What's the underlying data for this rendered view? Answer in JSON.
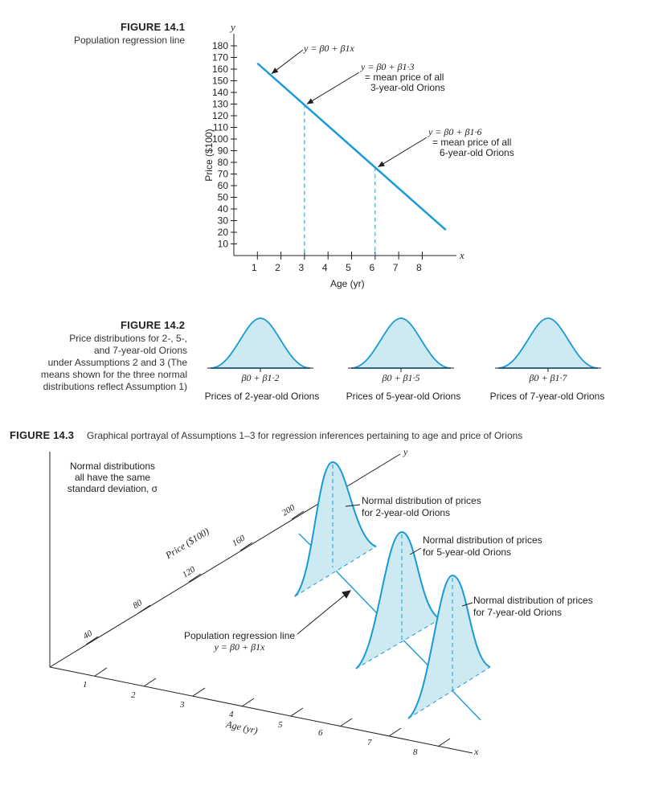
{
  "fig1": {
    "label": "FIGURE 14.1",
    "caption": "Population regression line",
    "y_axis_var": "y",
    "x_axis_var": "x",
    "y_axis_label": "Price ($100)",
    "x_axis_label": "Age (yr)",
    "annotation_line": "y = β0 + β1x",
    "annotation_3_eq": "y = β0 + β1·3",
    "annotation_3_l1": "= mean price of all",
    "annotation_3_l2": "3-year-old Orions",
    "annotation_6_eq": "y = β0 + β1·6",
    "annotation_6_l1": "= mean price of all",
    "annotation_6_l2": "6-year-old Orions"
  },
  "chart_data": {
    "type": "line",
    "x_ticks": [
      1,
      2,
      3,
      4,
      5,
      6,
      7,
      8
    ],
    "y_ticks": [
      10,
      20,
      30,
      40,
      50,
      60,
      70,
      80,
      90,
      100,
      110,
      120,
      130,
      140,
      150,
      160,
      170,
      180
    ],
    "xlim": [
      0,
      9
    ],
    "ylim": [
      0,
      190
    ],
    "series": [
      {
        "x": [
          1,
          9
        ],
        "y": [
          165,
          22
        ]
      }
    ],
    "marked_points": [
      {
        "x": 3,
        "y": 130
      },
      {
        "x": 6,
        "y": 76
      }
    ],
    "line_color": "#1a9ad6"
  },
  "fig2": {
    "label": "FIGURE 14.2",
    "caption_l1": "Price distributions for 2-, 5-,",
    "caption_l2": "and 7-year-old Orions",
    "caption_l3": "under Assumptions 2 and 3 (The",
    "caption_l4": "means shown for the three normal",
    "caption_l5": "distributions reflect Assumption 1)",
    "curves": [
      {
        "mean_label": "β0 + β1·2",
        "label": "Prices of 2-year-old Orions"
      },
      {
        "mean_label": "β0 + β1·5",
        "label": "Prices of 5-year-old Orions"
      },
      {
        "mean_label": "β0 + β1·7",
        "label": "Prices of 7-year-old Orions"
      }
    ]
  },
  "fig3": {
    "label": "FIGURE 14.3",
    "caption": "Graphical portrayal of Assumptions 1–3 for regression inferences pertaining to age and price of Orions",
    "note_l1": "Normal distributions",
    "note_l2": "all have the same",
    "note_l3": "standard deviation, σ",
    "dist2_l1": "Normal distribution of prices",
    "dist2_l2": "for 2-year-old Orions",
    "dist5_l1": "Normal distribution of prices",
    "dist5_l2": "for 5-year-old Orions",
    "dist7_l1": "Normal distribution of prices",
    "dist7_l2": "for 7-year-old Orions",
    "reg_l1": "Population regression line",
    "reg_l2": "y = β0 + β1x",
    "price_axis_label": "Price ($100)",
    "age_axis_label": "Age (yr)",
    "price_ticks": [
      "40",
      "80",
      "120",
      "160",
      "200"
    ],
    "age_ticks": [
      "1",
      "2",
      "3",
      "4",
      "5",
      "6",
      "7",
      "8"
    ],
    "axis_x": "x",
    "axis_y": "y"
  }
}
